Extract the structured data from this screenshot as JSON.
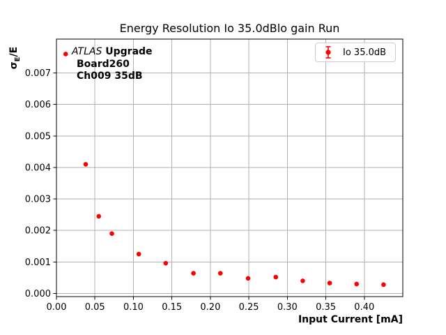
{
  "title": "Energy Resolution Io 35.0dBlo gain Run",
  "ylabel": {
    "sigma": "σ",
    "sub": "E",
    "rest": "/E"
  },
  "xlabel": "Input Current [mA]",
  "annotation": {
    "line1_italic": "ATLAS",
    "line1_bold": " Upgrade",
    "line2": "Board260",
    "line3": "Ch009 35dB"
  },
  "legend": {
    "label": "Io 35.0dB"
  },
  "colors": {
    "marker": "#ff0000",
    "grid": "#b0b0b0",
    "axis": "#000000",
    "legend_border": "#cccccc",
    "background": "#ffffff"
  },
  "chart_data": {
    "type": "scatter",
    "marker_style": "errorbar_dot",
    "title": "Energy Resolution Io 35.0dBlo gain Run",
    "xlabel": "Input Current [mA]",
    "ylabel": "σ_E/E",
    "xlim": [
      0,
      0.45
    ],
    "ylim": [
      -0.0001,
      0.008075
    ],
    "grid": true,
    "legend_position": "upper right",
    "series": [
      {
        "name": "Io 35.0dB",
        "color": "#ff0000",
        "x": [
          0.012,
          0.038,
          0.055,
          0.072,
          0.107,
          0.142,
          0.178,
          0.213,
          0.249,
          0.285,
          0.32,
          0.355,
          0.39,
          0.425
        ],
        "y": [
          0.0076,
          0.0041,
          0.00245,
          0.0019,
          0.00125,
          0.00096,
          0.00064,
          0.00064,
          0.00048,
          0.00052,
          0.0004,
          0.00033,
          0.0003,
          0.00028
        ]
      }
    ],
    "x_tick_values": [
      0,
      0.05,
      0.1,
      0.15,
      0.2,
      0.25,
      0.3,
      0.35,
      0.4
    ],
    "x_tick_labels": [
      "0.00",
      "0.05",
      "0.10",
      "0.15",
      "0.20",
      "0.25",
      "0.30",
      "0.35",
      "0.40"
    ],
    "y_tick_values": [
      0,
      0.001,
      0.002,
      0.003,
      0.004,
      0.005,
      0.006,
      0.007
    ],
    "y_tick_labels": [
      "0.000",
      "0.001",
      "0.002",
      "0.003",
      "0.004",
      "0.005",
      "0.006",
      "0.007"
    ]
  }
}
